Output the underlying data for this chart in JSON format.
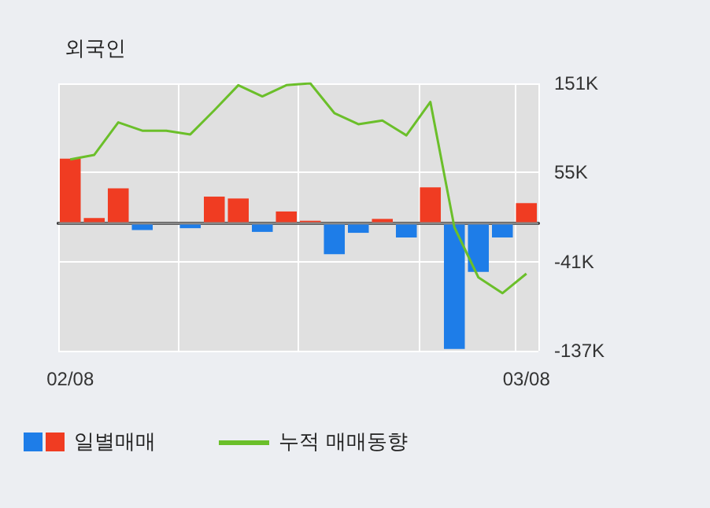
{
  "chart_data": {
    "type": "bar",
    "title": "외국인",
    "categories": [
      "02/08",
      null,
      null,
      null,
      null,
      null,
      null,
      null,
      null,
      null,
      null,
      null,
      null,
      null,
      null,
      null,
      null,
      null,
      null,
      "03/08"
    ],
    "series": [
      {
        "name": "일별매매",
        "colors": [
          "#f03c22",
          "#f03c22",
          "#f03c22",
          "#1e7de8",
          "#1e7de8",
          "#1e7de8",
          "#f03c22",
          "#f03c22",
          "#1e7de8",
          "#f03c22",
          "#f03c22",
          "#1e7de8",
          "#1e7de8",
          "#f03c22",
          "#1e7de8",
          "#f03c22",
          "#1e7de8",
          "#1e7de8",
          "#1e7de8",
          "#f03c22"
        ],
        "values": [
          70,
          6,
          38,
          -7,
          0,
          -5,
          29,
          27,
          -9,
          13,
          3,
          -33,
          -10,
          5,
          -15,
          39,
          -135,
          -52,
          -15,
          22
        ]
      },
      {
        "name": "누적 매매동향",
        "type": "line",
        "color": "#6bbf2a",
        "values": [
          69,
          74,
          109,
          100,
          100,
          96,
          122,
          149,
          137,
          149,
          151,
          119,
          107,
          111,
          95,
          131,
          -4,
          -58,
          -75,
          -54
        ]
      }
    ],
    "ylim": [
      -137,
      151
    ],
    "yticks": [
      {
        "value": -137,
        "label": "-137K"
      },
      {
        "value": -41,
        "label": "-41K"
      },
      {
        "value": 55,
        "label": "55K"
      },
      {
        "value": 151,
        "label": "151K"
      }
    ],
    "ref_lines": [
      {
        "axis": "y",
        "value": 0,
        "color": "#888888"
      }
    ],
    "grid": true,
    "legend": "bottom",
    "marker": "none"
  }
}
